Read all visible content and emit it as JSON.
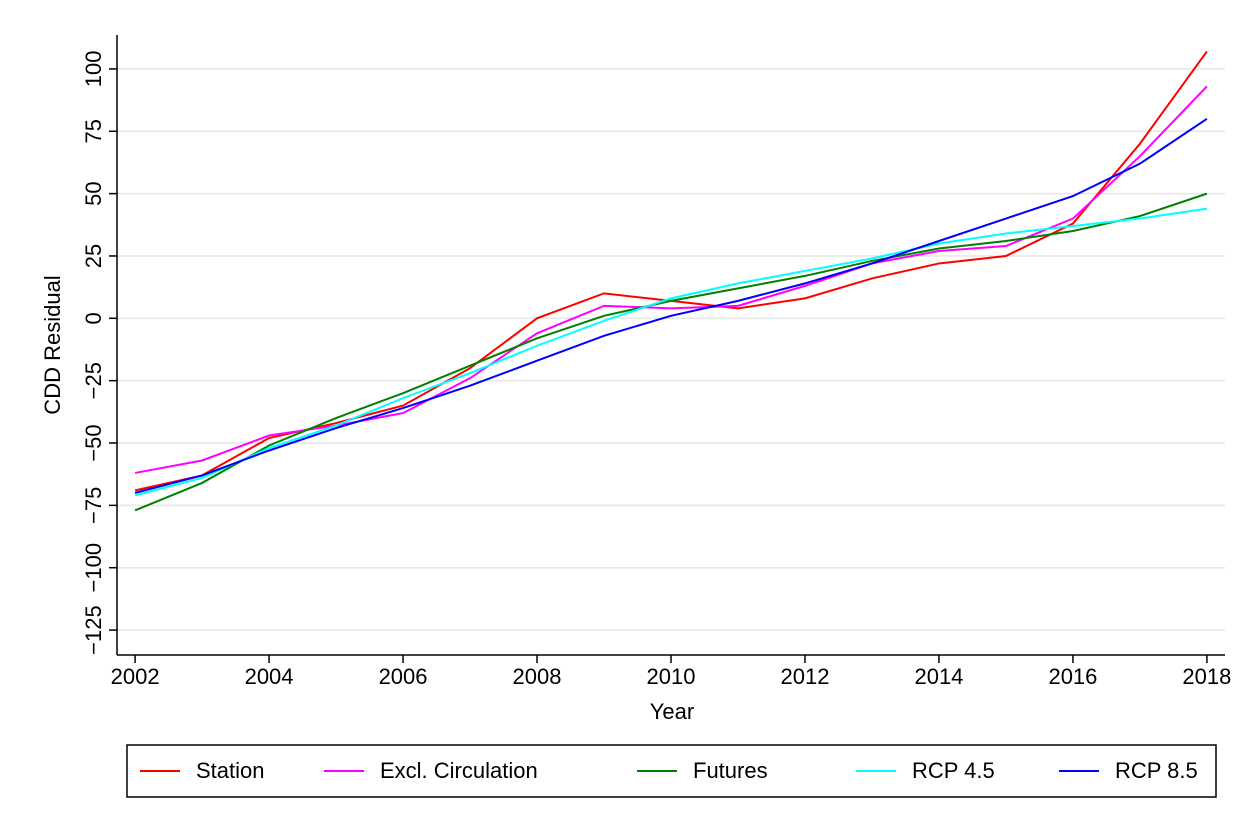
{
  "chart_data": {
    "type": "line",
    "x_label": "Year",
    "y_label": "CDD Residual",
    "x": [
      2002,
      2003,
      2004,
      2005,
      2006,
      2007,
      2008,
      2009,
      2010,
      2011,
      2012,
      2013,
      2014,
      2015,
      2016,
      2017,
      2018
    ],
    "series": [
      {
        "name": "Station",
        "color": "#ff0000",
        "values": [
          -69,
          -63,
          -48,
          -42,
          -35,
          -20,
          0,
          10,
          7,
          4,
          8,
          16,
          22,
          25,
          38,
          70,
          107
        ]
      },
      {
        "name": "Excl. Circulation",
        "color": "#ff00ff",
        "values": [
          -62,
          -57,
          -47,
          -43,
          -38,
          -24,
          -6,
          5,
          4,
          5,
          13,
          22,
          27,
          29,
          40,
          65,
          93
        ]
      },
      {
        "name": "Futures",
        "color": "#008000",
        "values": [
          -77,
          -66,
          -51,
          -40,
          -30,
          -19,
          -8,
          1,
          7,
          12,
          17,
          23,
          28,
          31,
          35,
          41,
          50
        ]
      },
      {
        "name": "RCP 4.5",
        "color": "#00ffff",
        "values": [
          -71,
          -64,
          -52,
          -43,
          -32,
          -22,
          -11,
          -1,
          8,
          14,
          19,
          24,
          30,
          34,
          37,
          40,
          44
        ]
      },
      {
        "name": "RCP 8.5",
        "color": "#0000ff",
        "values": [
          -70,
          -63,
          -53,
          -44,
          -36,
          -27,
          -17,
          -7,
          1,
          7,
          14,
          22,
          31,
          40,
          49,
          62,
          80
        ]
      }
    ],
    "xlim": [
      2001.73,
      2018.27
    ],
    "xticks": [
      2002,
      2004,
      2006,
      2008,
      2010,
      2012,
      2014,
      2016,
      2018
    ],
    "ylim": [
      -135,
      113.6
    ],
    "yticks": [
      {
        "value": -125,
        "label": "−125"
      },
      {
        "value": -100,
        "label": "−100"
      },
      {
        "value": -75,
        "label": "−75"
      },
      {
        "value": -50,
        "label": "−50"
      },
      {
        "value": -25,
        "label": "−25"
      },
      0,
      25,
      50,
      75,
      100
    ],
    "grid": true,
    "legend": "bottom"
  }
}
